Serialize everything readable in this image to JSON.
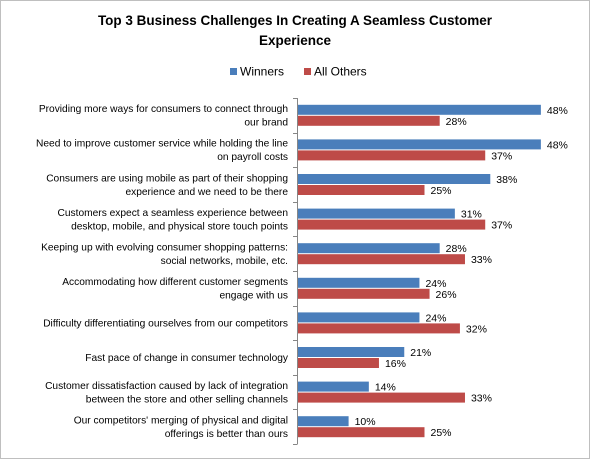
{
  "chart_data": {
    "type": "bar",
    "orientation": "horizontal",
    "title": "Top 3 Business Challenges In Creating A Seamless Customer Experience",
    "title_lines": [
      "Top 3 Business Challenges In Creating A Seamless Customer",
      "Experience"
    ],
    "legend_position": "top",
    "value_unit": "%",
    "xlim": [
      0,
      50
    ],
    "grid": false,
    "categories": [
      [
        "Providing more ways for consumers to connect through",
        "our brand"
      ],
      [
        "Need to improve customer service while holding the line",
        "on payroll costs"
      ],
      [
        "Consumers are using mobile as part of their shopping",
        "experience and we need to be there"
      ],
      [
        "Customers expect a seamless experience between",
        "desktop, mobile, and physical store touch points"
      ],
      [
        "Keeping up with evolving consumer shopping patterns:",
        "social networks, mobile, etc."
      ],
      [
        "Accommodating how different customer segments",
        "engage with us"
      ],
      [
        "Difficulty differentiating ourselves from our competitors"
      ],
      [
        "Fast pace of change in consumer technology"
      ],
      [
        "Customer dissatisfaction caused by lack of integration",
        "between the store and other selling channels"
      ],
      [
        "Our competitors' merging of physical and digital",
        "offerings is better than ours"
      ]
    ],
    "series": [
      {
        "name": "Winners",
        "color": "#4a7ebb",
        "values": [
          48,
          48,
          38,
          31,
          28,
          24,
          24,
          21,
          14,
          10
        ]
      },
      {
        "name": "All Others",
        "color": "#be4b48",
        "values": [
          28,
          37,
          25,
          37,
          33,
          26,
          32,
          16,
          33,
          25
        ]
      }
    ]
  }
}
